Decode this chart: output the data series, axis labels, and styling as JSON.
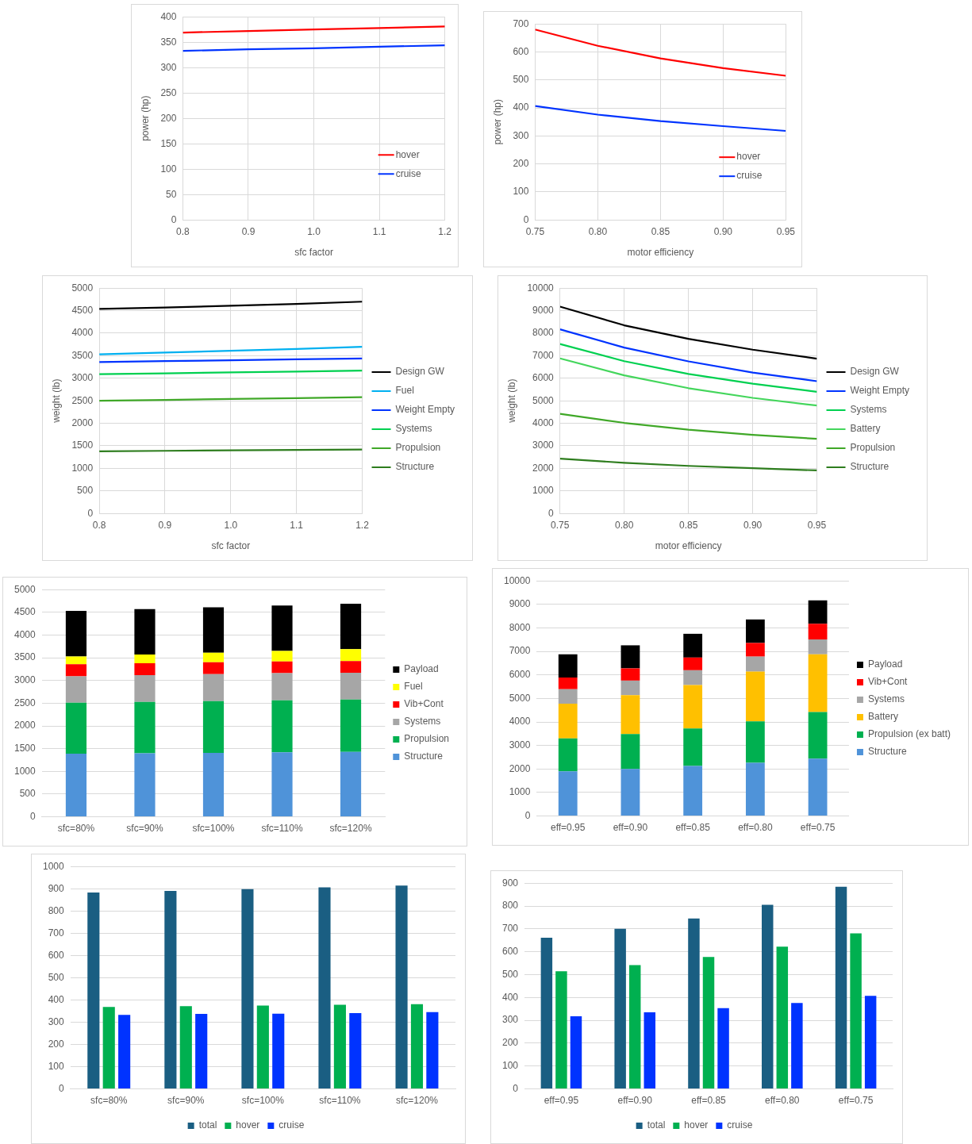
{
  "chart_data": [
    {
      "type": "line",
      "xlabel": "sfc factor",
      "ylabel": "power (hp)",
      "x": [
        0.8,
        0.9,
        1.0,
        1.1,
        1.2
      ],
      "xlim": [
        0.8,
        1.2
      ],
      "xticks": [
        0.8,
        0.9,
        {
          "value": 1.0,
          "label": "1.0"
        },
        1.1,
        1.2
      ],
      "ylim": [
        0,
        400
      ],
      "yticks": [
        0,
        50,
        100,
        150,
        200,
        250,
        300,
        350,
        400
      ],
      "grid": true,
      "legend": "bottom right",
      "series": [
        {
          "name": "hover",
          "color": "#ff0000",
          "values": [
            369,
            372,
            375,
            378,
            381
          ]
        },
        {
          "name": "cruise",
          "color": "#0033ff",
          "values": [
            333,
            336,
            338,
            341,
            344
          ]
        }
      ]
    },
    {
      "type": "line",
      "xlabel": "motor efficiency",
      "ylabel": "power (hp)",
      "x": [
        0.75,
        0.8,
        0.85,
        0.9,
        0.95
      ],
      "xlim": [
        0.75,
        0.95
      ],
      "xticks": [
        0.75,
        {
          "value": 0.8,
          "label": "0.80"
        },
        0.85,
        {
          "value": 0.9,
          "label": "0.90"
        },
        0.95
      ],
      "ylim": [
        0,
        700
      ],
      "yticks": [
        0,
        100,
        200,
        300,
        400,
        500,
        600,
        700
      ],
      "grid": true,
      "legend": "bottom right",
      "series": [
        {
          "name": "hover",
          "color": "#ff0000",
          "values": [
            680,
            622,
            577,
            542,
            515
          ]
        },
        {
          "name": "cruise",
          "color": "#0033ff",
          "values": [
            407,
            376,
            353,
            335,
            318
          ]
        }
      ]
    },
    {
      "type": "line",
      "xlabel": "sfc factor",
      "ylabel": "weight (lb)",
      "x": [
        0.8,
        0.9,
        1.0,
        1.1,
        1.2
      ],
      "xlim": [
        0.8,
        1.2
      ],
      "xticks": [
        0.8,
        0.9,
        {
          "value": 1.0,
          "label": "1.0"
        },
        1.1,
        1.2
      ],
      "ylim": [
        0,
        5000
      ],
      "yticks": [
        0,
        500,
        1000,
        1500,
        2000,
        2500,
        3000,
        3500,
        4000,
        4500,
        5000
      ],
      "grid": true,
      "legend": "right",
      "series": [
        {
          "name": "Design GW",
          "color": "#000000",
          "values": [
            4540,
            4570,
            4610,
            4650,
            4700
          ]
        },
        {
          "name": "Fuel",
          "color": "#00b0f0",
          "values": [
            3530,
            3570,
            3610,
            3650,
            3700
          ]
        },
        {
          "name": "Weight Empty",
          "color": "#0033ff",
          "values": [
            3360,
            3380,
            3400,
            3420,
            3440
          ]
        },
        {
          "name": "Systems",
          "color": "#00d050",
          "values": [
            3090,
            3110,
            3130,
            3150,
            3170
          ]
        },
        {
          "name": "Propulsion",
          "color": "#40a828",
          "values": [
            2500,
            2520,
            2540,
            2560,
            2580
          ]
        },
        {
          "name": "Structure",
          "color": "#2e7d1e",
          "values": [
            1380,
            1390,
            1400,
            1410,
            1420
          ]
        }
      ]
    },
    {
      "type": "line",
      "xlabel": "motor efficiency",
      "ylabel": "weight (lb)",
      "x": [
        0.75,
        0.8,
        0.85,
        0.9,
        0.95
      ],
      "xlim": [
        0.75,
        0.95
      ],
      "xticks": [
        0.75,
        {
          "value": 0.8,
          "label": "0.80"
        },
        0.85,
        {
          "value": 0.9,
          "label": "0.90"
        },
        0.95
      ],
      "ylim": [
        0,
        10000
      ],
      "yticks": [
        0,
        1000,
        2000,
        3000,
        4000,
        5000,
        6000,
        7000,
        8000,
        9000,
        10000
      ],
      "grid": true,
      "legend": "right",
      "series": [
        {
          "name": "Design GW",
          "color": "#000000",
          "values": [
            9180,
            8350,
            7750,
            7270,
            6870
          ]
        },
        {
          "name": "Weight Empty",
          "color": "#0033ff",
          "values": [
            8170,
            7360,
            6750,
            6250,
            5870
          ]
        },
        {
          "name": "Systems",
          "color": "#00d050",
          "values": [
            7520,
            6760,
            6190,
            5760,
            5400
          ]
        },
        {
          "name": "Battery",
          "color": "#44d65c",
          "values": [
            6880,
            6130,
            5560,
            5130,
            4790
          ]
        },
        {
          "name": "Propulsion",
          "color": "#40a828",
          "values": [
            4420,
            4020,
            3720,
            3490,
            3310
          ]
        },
        {
          "name": "Structure",
          "color": "#2e7d1e",
          "values": [
            2430,
            2250,
            2110,
            2010,
            1910
          ]
        }
      ]
    },
    {
      "type": "bar",
      "stacked": true,
      "categories": [
        "sfc=80%",
        "sfc=90%",
        "sfc=100%",
        "sfc=110%",
        "sfc=120%"
      ],
      "ylim": [
        0,
        5000
      ],
      "yticks": [
        0,
        500,
        1000,
        1500,
        2000,
        2500,
        3000,
        3500,
        4000,
        4500,
        5000
      ],
      "grid": "y",
      "legend": "right",
      "series": [
        {
          "name": "Structure",
          "color": "#4f93d9",
          "values": [
            1390,
            1400,
            1405,
            1420,
            1430
          ]
        },
        {
          "name": "Propulsion",
          "color": "#00b050",
          "values": [
            1120,
            1130,
            1140,
            1145,
            1150
          ]
        },
        {
          "name": "Systems",
          "color": "#a6a6a6",
          "values": [
            580,
            590,
            595,
            595,
            590
          ]
        },
        {
          "name": "Vib+Cont",
          "color": "#ff0000",
          "values": [
            270,
            260,
            260,
            260,
            260
          ]
        },
        {
          "name": "Fuel",
          "color": "#ffff00",
          "values": [
            170,
            190,
            210,
            230,
            260
          ]
        },
        {
          "name": "Payload",
          "color": "#000000",
          "values": [
            1000,
            1000,
            1000,
            1000,
            1000
          ]
        }
      ]
    },
    {
      "type": "bar",
      "stacked": true,
      "categories": [
        "eff=0.95",
        "eff=0.90",
        "eff=0.85",
        "eff=0.80",
        "eff=0.75"
      ],
      "ylim": [
        0,
        10000
      ],
      "yticks": [
        0,
        1000,
        2000,
        3000,
        4000,
        5000,
        6000,
        7000,
        8000,
        9000,
        10000
      ],
      "grid": "y",
      "legend": "right",
      "series": [
        {
          "name": "Structure",
          "color": "#4f93d9",
          "values": [
            1900,
            2000,
            2130,
            2260,
            2440
          ]
        },
        {
          "name": "Propulsion (ex batt)",
          "color": "#00b050",
          "values": [
            1400,
            1490,
            1590,
            1770,
            1980
          ]
        },
        {
          "name": "Battery",
          "color": "#ffc000",
          "values": [
            1480,
            1650,
            1850,
            2110,
            2460
          ]
        },
        {
          "name": "Systems",
          "color": "#a6a6a6",
          "values": [
            610,
            620,
            630,
            640,
            630
          ]
        },
        {
          "name": "Vib+Cont",
          "color": "#ff0000",
          "values": [
            500,
            520,
            540,
            580,
            670
          ]
        },
        {
          "name": "Payload",
          "color": "#000000",
          "values": [
            990,
            980,
            1010,
            1000,
            990
          ]
        }
      ]
    },
    {
      "type": "bar",
      "categories": [
        "sfc=80%",
        "sfc=90%",
        "sfc=100%",
        "sfc=110%",
        "sfc=120%"
      ],
      "ylim": [
        0,
        1000
      ],
      "yticks": [
        0,
        100,
        200,
        300,
        400,
        500,
        600,
        700,
        800,
        900,
        1000
      ],
      "grid": "y",
      "legend": "bottom",
      "series": [
        {
          "name": "total",
          "color": "#1a5e82",
          "values": [
            883,
            890,
            898,
            906,
            914
          ]
        },
        {
          "name": "hover",
          "color": "#00b050",
          "values": [
            369,
            372,
            375,
            378,
            381
          ]
        },
        {
          "name": "cruise",
          "color": "#0033ff",
          "values": [
            333,
            337,
            338,
            341,
            345
          ]
        }
      ]
    },
    {
      "type": "bar",
      "categories": [
        "eff=0.95",
        "eff=0.90",
        "eff=0.85",
        "eff=0.80",
        "eff=0.75"
      ],
      "ylim": [
        0,
        900
      ],
      "yticks": [
        0,
        100,
        200,
        300,
        400,
        500,
        600,
        700,
        800,
        900
      ],
      "grid": "y",
      "legend": "bottom",
      "series": [
        {
          "name": "total",
          "color": "#1a5e82",
          "values": [
            661,
            700,
            745,
            805,
            884
          ]
        },
        {
          "name": "hover",
          "color": "#00b050",
          "values": [
            515,
            542,
            577,
            622,
            680
          ]
        },
        {
          "name": "cruise",
          "color": "#0033ff",
          "values": [
            318,
            335,
            353,
            376,
            407
          ]
        }
      ]
    }
  ]
}
